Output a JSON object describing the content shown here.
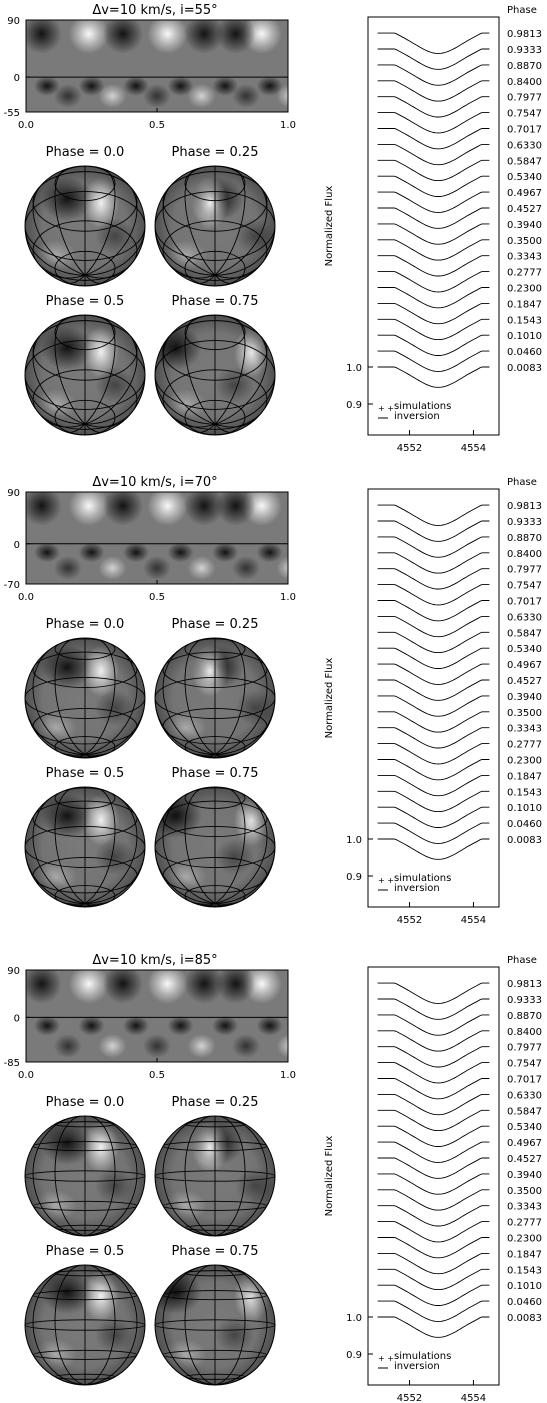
{
  "phases_label": "Phase",
  "ylabel": "Normalized Flux",
  "legend": {
    "sim": "simulations",
    "inv": "inversion",
    "sim_marker": "+ +"
  },
  "phase_word": "Phase =",
  "colors": {
    "ink": "#000000",
    "map_mid": "#7a7a7a",
    "spot_dark": "#111111",
    "spot_bright": "#ffffff"
  },
  "chart_data": [
    {
      "type": "heatmap",
      "title": "Δv=10 km/s, i=55°",
      "inclination_deg": 55,
      "lat_ticks": [
        "90",
        "0",
        "-55"
      ],
      "lat_values": [
        90,
        0,
        -55
      ],
      "lon_ticks": [
        "0.0",
        "0.5",
        "1.0"
      ],
      "lon_values": [
        0,
        0.5,
        1
      ],
      "globes": [
        {
          "phase_label": "0.0",
          "phase": 0.0
        },
        {
          "phase_label": "0.25",
          "phase": 0.25
        },
        {
          "phase_label": "0.5",
          "phase": 0.5
        },
        {
          "phase_label": "0.75",
          "phase": 0.75
        }
      ],
      "spectra": {
        "type": "line",
        "xlabel": "",
        "ylabel": "Normalized Flux",
        "x_ticks": [
          "4552",
          "4554"
        ],
        "x_tick_values": [
          4552,
          4554
        ],
        "xlim": [
          4550.7,
          4554.8
        ],
        "y_ticks": [
          "1.0",
          "0.9"
        ],
        "y_tick_values": [
          1.0,
          0.9
        ],
        "phases": [
          "0.9813",
          "0.9333",
          "0.8870",
          "0.8400",
          "0.7977",
          "0.7547",
          "0.7017",
          "0.6330",
          "0.5847",
          "0.5340",
          "0.4967",
          "0.4527",
          "0.3940",
          "0.3500",
          "0.3343",
          "0.2777",
          "0.2300",
          "0.1847",
          "0.1543",
          "0.1010",
          "0.0460",
          "0.0083"
        ],
        "line_profile": {
          "continuum": 1.0,
          "depth": 0.055,
          "center": 4552.9,
          "half_width": 1.35
        }
      }
    },
    {
      "type": "heatmap",
      "title": "Δv=10 km/s, i=70°",
      "inclination_deg": 70,
      "lat_ticks": [
        "90",
        "0",
        "-70"
      ],
      "lat_values": [
        90,
        0,
        -70
      ],
      "lon_ticks": [
        "0.0",
        "0.5",
        "1.0"
      ],
      "lon_values": [
        0,
        0.5,
        1
      ],
      "globes": [
        {
          "phase_label": "0.0",
          "phase": 0.0
        },
        {
          "phase_label": "0.25",
          "phase": 0.25
        },
        {
          "phase_label": "0.5",
          "phase": 0.5
        },
        {
          "phase_label": "0.75",
          "phase": 0.75
        }
      ],
      "spectra": {
        "type": "line",
        "xlabel": "",
        "ylabel": "Normalized Flux",
        "x_ticks": [
          "4552",
          "4554"
        ],
        "x_tick_values": [
          4552,
          4554
        ],
        "xlim": [
          4550.7,
          4554.8
        ],
        "y_ticks": [
          "1.0",
          "0.9"
        ],
        "y_tick_values": [
          1.0,
          0.9
        ],
        "phases": [
          "0.9813",
          "0.9333",
          "0.8870",
          "0.8400",
          "0.7977",
          "0.7547",
          "0.7017",
          "0.6330",
          "0.5847",
          "0.5340",
          "0.4967",
          "0.4527",
          "0.3940",
          "0.3500",
          "0.3343",
          "0.2777",
          "0.2300",
          "0.1847",
          "0.1543",
          "0.1010",
          "0.0460",
          "0.0083"
        ],
        "line_profile": {
          "continuum": 1.0,
          "depth": 0.055,
          "center": 4552.9,
          "half_width": 1.35
        }
      }
    },
    {
      "type": "heatmap",
      "title": "Δv=10 km/s, i=85°",
      "inclination_deg": 85,
      "lat_ticks": [
        "90",
        "0",
        "-85"
      ],
      "lat_values": [
        90,
        0,
        -85
      ],
      "lon_ticks": [
        "0.0",
        "0.5",
        "1.0"
      ],
      "lon_values": [
        0,
        0.5,
        1
      ],
      "globes": [
        {
          "phase_label": "0.0",
          "phase": 0.0
        },
        {
          "phase_label": "0.25",
          "phase": 0.25
        },
        {
          "phase_label": "0.5",
          "phase": 0.5
        },
        {
          "phase_label": "0.75",
          "phase": 0.75
        }
      ],
      "spectra": {
        "type": "line",
        "xlabel": "",
        "ylabel": "Normalized Flux",
        "x_ticks": [
          "4552",
          "4554"
        ],
        "x_tick_values": [
          4552,
          4554
        ],
        "xlim": [
          4550.7,
          4554.8
        ],
        "y_ticks": [
          "1.0",
          "0.9"
        ],
        "y_tick_values": [
          1.0,
          0.9
        ],
        "phases": [
          "0.9813",
          "0.9333",
          "0.8870",
          "0.8400",
          "0.7977",
          "0.7547",
          "0.7017",
          "0.6330",
          "0.5847",
          "0.5340",
          "0.4967",
          "0.4527",
          "0.3940",
          "0.3500",
          "0.3343",
          "0.2777",
          "0.2300",
          "0.1847",
          "0.1543",
          "0.1010",
          "0.0460",
          "0.0083"
        ],
        "line_profile": {
          "continuum": 1.0,
          "depth": 0.055,
          "center": 4552.9,
          "half_width": 1.35
        }
      }
    }
  ]
}
